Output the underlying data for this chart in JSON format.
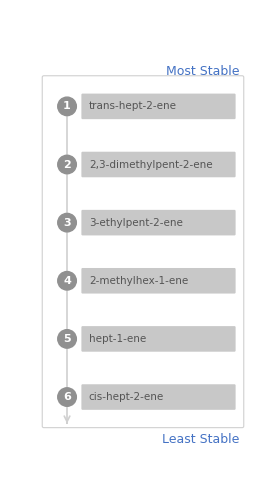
{
  "title_top": "Most Stable",
  "title_bottom": "Least Stable",
  "title_color": "#4472c4",
  "items": [
    {
      "rank": "1",
      "label": "trans-hept-2-ene"
    },
    {
      "rank": "2",
      "label": "2,3-dimethylpent-2-ene"
    },
    {
      "rank": "3",
      "label": "3-ethylpent-2-ene"
    },
    {
      "rank": "4",
      "label": "2-methylhex-1-ene"
    },
    {
      "rank": "5",
      "label": "hept-1-ene"
    },
    {
      "rank": "6",
      "label": "cis-hept-2-ene"
    }
  ],
  "background_color": "#ffffff",
  "box_background": "#c8c8c8",
  "border_color": "#c0c0c0",
  "outer_border_color": "#d0d0d0",
  "circle_color": "#909090",
  "circle_text_color": "#ffffff",
  "label_text_color": "#555555",
  "line_color": "#d0d0d0",
  "arrow_color": "#d0d0d0",
  "figsize": [
    2.76,
    5.03
  ],
  "dpi": 100
}
